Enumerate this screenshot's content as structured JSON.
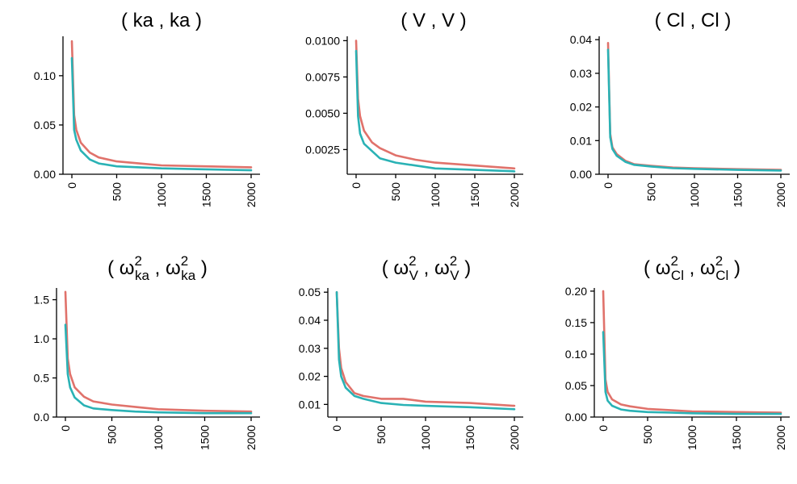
{
  "colors": {
    "series_a": "#E0726B",
    "series_b": "#2AB2B5"
  },
  "chart_data": [
    {
      "type": "line",
      "title": {
        "open": "(",
        "close": ")",
        "items": [
          {
            "base": "ka"
          },
          {
            "base": "ka"
          }
        ]
      },
      "xlim": [
        0,
        2000
      ],
      "ylim": [
        0,
        0.14
      ],
      "xticks": [
        0,
        500,
        1000,
        1500,
        2000
      ],
      "xtick_labels": [
        "0",
        "500",
        "1000",
        "1500",
        "2000"
      ],
      "yticks": [
        0,
        0.05,
        0.1
      ],
      "ytick_labels": [
        "0.00",
        "0.05",
        "0.10"
      ],
      "x": [
        0,
        25,
        50,
        100,
        200,
        300,
        500,
        750,
        1000,
        1500,
        2000
      ],
      "series": [
        {
          "name": "series_a",
          "values": [
            0.135,
            0.06,
            0.045,
            0.032,
            0.022,
            0.017,
            0.013,
            0.011,
            0.009,
            0.008,
            0.007
          ]
        },
        {
          "name": "series_b",
          "values": [
            0.118,
            0.045,
            0.035,
            0.024,
            0.015,
            0.011,
            0.008,
            0.007,
            0.006,
            0.005,
            0.004
          ]
        }
      ]
    },
    {
      "type": "line",
      "title": {
        "open": "(",
        "close": ")",
        "items": [
          {
            "base": "V"
          },
          {
            "base": "V"
          }
        ]
      },
      "xlim": [
        0,
        2000
      ],
      "ylim": [
        0.0008,
        0.0103
      ],
      "xticks": [
        0,
        500,
        1000,
        1500,
        2000
      ],
      "xtick_labels": [
        "0",
        "500",
        "1000",
        "1500",
        "2000"
      ],
      "yticks": [
        0.0025,
        0.005,
        0.0075,
        0.01
      ],
      "ytick_labels": [
        "0.0025",
        "0.0050",
        "0.0075",
        "0.0100"
      ],
      "x": [
        0,
        25,
        50,
        100,
        200,
        300,
        500,
        750,
        1000,
        1500,
        2000
      ],
      "series": [
        {
          "name": "series_a",
          "values": [
            0.01,
            0.006,
            0.0048,
            0.0038,
            0.003,
            0.0026,
            0.0021,
            0.0018,
            0.0016,
            0.0014,
            0.0012
          ]
        },
        {
          "name": "series_b",
          "values": [
            0.0093,
            0.0048,
            0.0036,
            0.0029,
            0.0024,
            0.0019,
            0.0016,
            0.0014,
            0.0012,
            0.0011,
            0.001
          ]
        }
      ]
    },
    {
      "type": "line",
      "title": {
        "open": "(",
        "close": ")",
        "items": [
          {
            "base": "Cl"
          },
          {
            "base": "Cl"
          }
        ]
      },
      "xlim": [
        0,
        2000
      ],
      "ylim": [
        0,
        0.041
      ],
      "xticks": [
        0,
        500,
        1000,
        1500,
        2000
      ],
      "xtick_labels": [
        "0",
        "500",
        "1000",
        "1500",
        "2000"
      ],
      "yticks": [
        0,
        0.01,
        0.02,
        0.03,
        0.04
      ],
      "ytick_labels": [
        "0.00",
        "0.01",
        "0.02",
        "0.03",
        "0.04"
      ],
      "x": [
        0,
        25,
        50,
        100,
        200,
        300,
        500,
        750,
        1000,
        1500,
        2000
      ],
      "series": [
        {
          "name": "series_a",
          "values": [
            0.039,
            0.012,
            0.008,
            0.006,
            0.004,
            0.003,
            0.0025,
            0.002,
            0.0018,
            0.0015,
            0.0013
          ]
        },
        {
          "name": "series_b",
          "values": [
            0.037,
            0.011,
            0.0075,
            0.0055,
            0.0037,
            0.0028,
            0.0023,
            0.0018,
            0.0016,
            0.0013,
            0.0011
          ]
        }
      ]
    },
    {
      "type": "line",
      "title": {
        "open": "(",
        "close": ")",
        "items": [
          {
            "base": "ω",
            "sup": "2",
            "sub": "ka"
          },
          {
            "base": "ω",
            "sup": "2",
            "sub": "ka"
          }
        ]
      },
      "xlim": [
        0,
        2000
      ],
      "ylim": [
        0,
        1.65
      ],
      "xticks": [
        0,
        500,
        1000,
        1500,
        2000
      ],
      "xtick_labels": [
        "0",
        "500",
        "1000",
        "1500",
        "2000"
      ],
      "yticks": [
        0,
        0.5,
        1.0,
        1.5
      ],
      "ytick_labels": [
        "0.0",
        "0.5",
        "1.0",
        "1.5"
      ],
      "x": [
        0,
        25,
        50,
        100,
        200,
        300,
        500,
        750,
        1000,
        1500,
        2000
      ],
      "series": [
        {
          "name": "series_a",
          "values": [
            1.6,
            0.75,
            0.55,
            0.38,
            0.26,
            0.2,
            0.16,
            0.13,
            0.1,
            0.08,
            0.07
          ]
        },
        {
          "name": "series_b",
          "values": [
            1.18,
            0.55,
            0.38,
            0.25,
            0.15,
            0.11,
            0.09,
            0.07,
            0.06,
            0.05,
            0.05
          ]
        }
      ]
    },
    {
      "type": "line",
      "title": {
        "open": "(",
        "close": ")",
        "items": [
          {
            "base": "ω",
            "sup": "2",
            "sub": "V"
          },
          {
            "base": "ω",
            "sup": "2",
            "sub": "V"
          }
        ]
      },
      "xlim": [
        0,
        2000
      ],
      "ylim": [
        0.0055,
        0.0515
      ],
      "xticks": [
        0,
        500,
        1000,
        1500,
        2000
      ],
      "xtick_labels": [
        "0",
        "500",
        "1000",
        "1500",
        "2000"
      ],
      "yticks": [
        0.01,
        0.02,
        0.03,
        0.04,
        0.05
      ],
      "ytick_labels": [
        "0.01",
        "0.02",
        "0.03",
        "0.04",
        "0.05"
      ],
      "x": [
        0,
        25,
        50,
        100,
        200,
        300,
        500,
        750,
        1000,
        1500,
        2000
      ],
      "series": [
        {
          "name": "series_a",
          "values": [
            0.05,
            0.03,
            0.023,
            0.018,
            0.014,
            0.013,
            0.012,
            0.012,
            0.011,
            0.0105,
            0.0095
          ]
        },
        {
          "name": "series_b",
          "values": [
            0.05,
            0.026,
            0.02,
            0.016,
            0.013,
            0.012,
            0.0105,
            0.0098,
            0.0095,
            0.009,
            0.0083
          ]
        }
      ]
    },
    {
      "type": "line",
      "title": {
        "open": "(",
        "close": ")",
        "items": [
          {
            "base": "ω",
            "sup": "2",
            "sub": "Cl"
          },
          {
            "base": "ω",
            "sup": "2",
            "sub": "Cl"
          }
        ]
      },
      "xlim": [
        0,
        2000
      ],
      "ylim": [
        0,
        0.205
      ],
      "xticks": [
        0,
        500,
        1000,
        1500,
        2000
      ],
      "xtick_labels": [
        "0",
        "500",
        "1000",
        "1500",
        "2000"
      ],
      "yticks": [
        0,
        0.05,
        0.1,
        0.15,
        0.2
      ],
      "ytick_labels": [
        "0.00",
        "0.05",
        "0.10",
        "0.15",
        "0.20"
      ],
      "x": [
        0,
        25,
        50,
        100,
        200,
        300,
        500,
        750,
        1000,
        1500,
        2000
      ],
      "series": [
        {
          "name": "series_a",
          "values": [
            0.2,
            0.06,
            0.04,
            0.028,
            0.02,
            0.017,
            0.013,
            0.011,
            0.009,
            0.008,
            0.007
          ]
        },
        {
          "name": "series_b",
          "values": [
            0.135,
            0.04,
            0.026,
            0.018,
            0.012,
            0.01,
            0.008,
            0.007,
            0.006,
            0.005,
            0.005
          ]
        }
      ]
    }
  ]
}
